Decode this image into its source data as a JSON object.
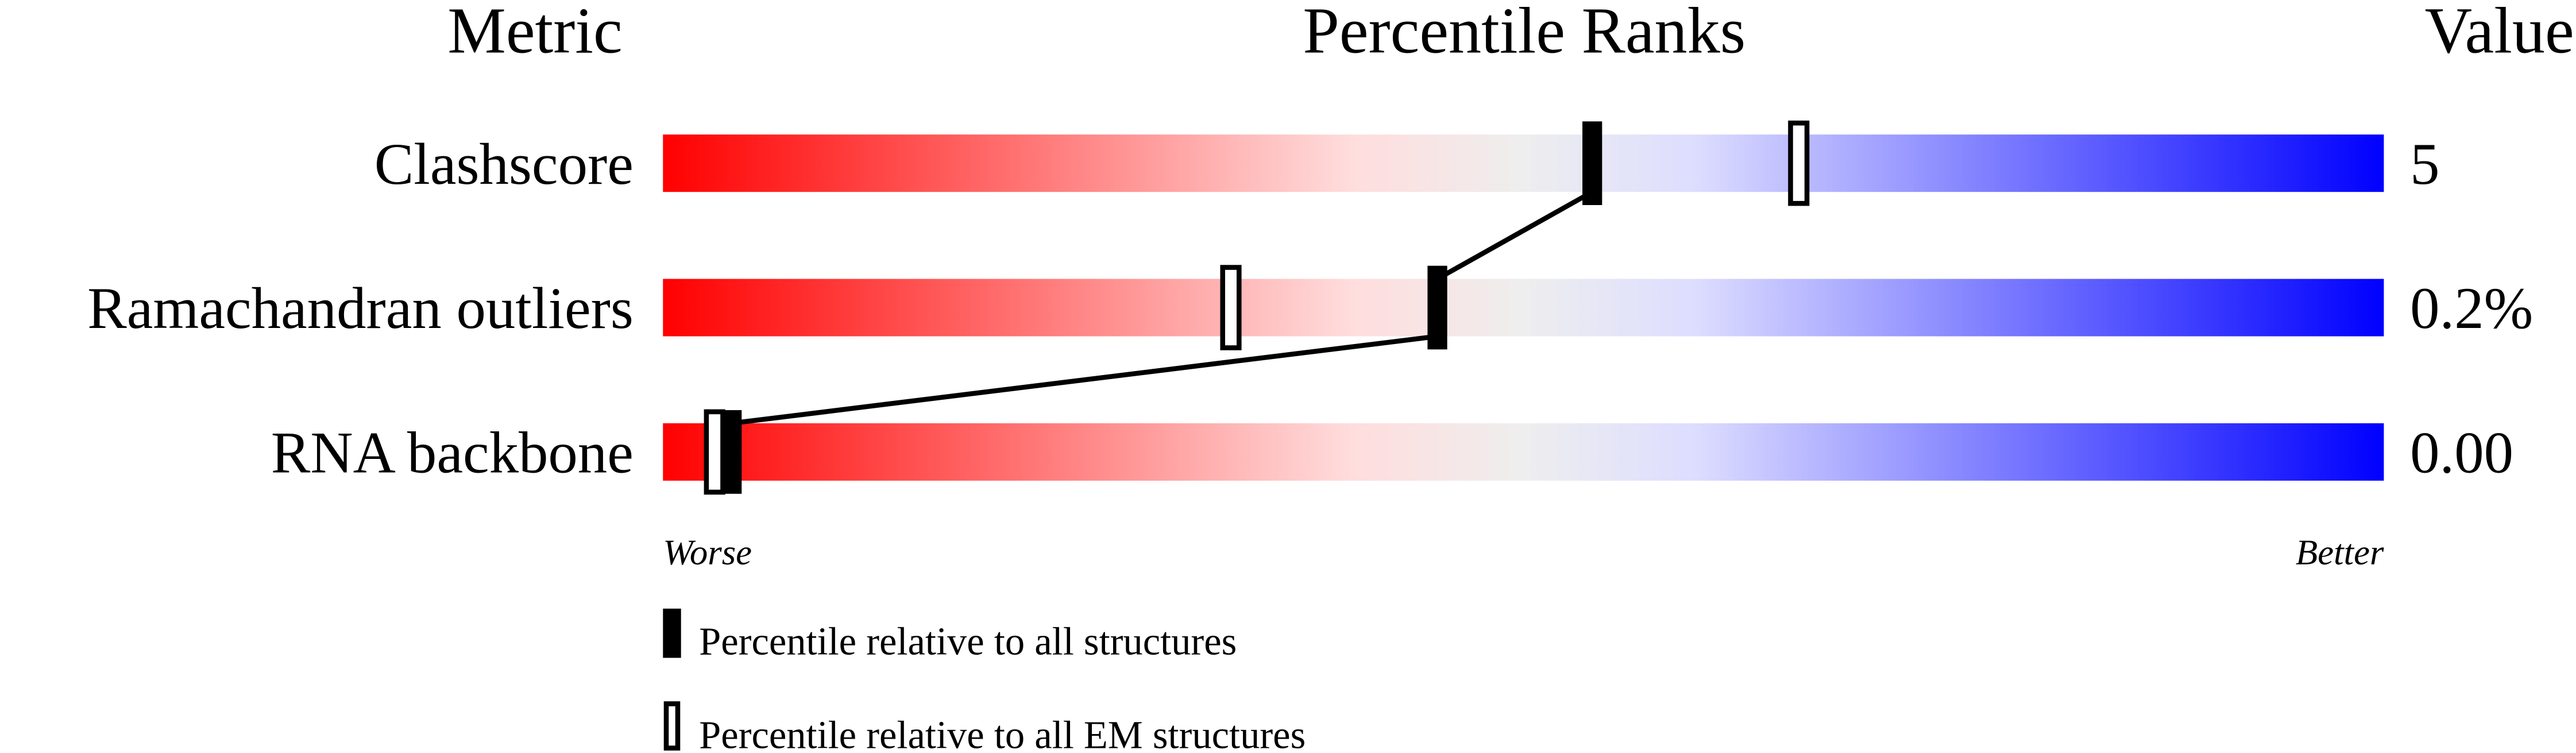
{
  "headers": {
    "metric": "Metric",
    "percentile": "Percentile Ranks",
    "value": "Value"
  },
  "chart_data": {
    "type": "bar",
    "subtype": "percentile-slider",
    "xlim": [
      0,
      100
    ],
    "axis_labels": {
      "left": "Worse",
      "right": "Better"
    },
    "gradient_colors": [
      "#ff0000",
      "#ffdddd",
      "#eeeeee",
      "#ddddff",
      "#0000ff"
    ],
    "metrics": [
      {
        "name": "Clashscore",
        "value": "5",
        "percentile_all": 54,
        "percentile_em": 66
      },
      {
        "name": "Ramachandran outliers",
        "value": "0.2%",
        "percentile_all": 45,
        "percentile_em": 33
      },
      {
        "name": "RNA backbone",
        "value": "0.00",
        "percentile_all": 4,
        "percentile_em": 3
      }
    ],
    "legend": [
      {
        "marker": "filled",
        "label": "Percentile relative to all structures"
      },
      {
        "marker": "hollow",
        "label": "Percentile relative to all EM structures"
      }
    ]
  }
}
